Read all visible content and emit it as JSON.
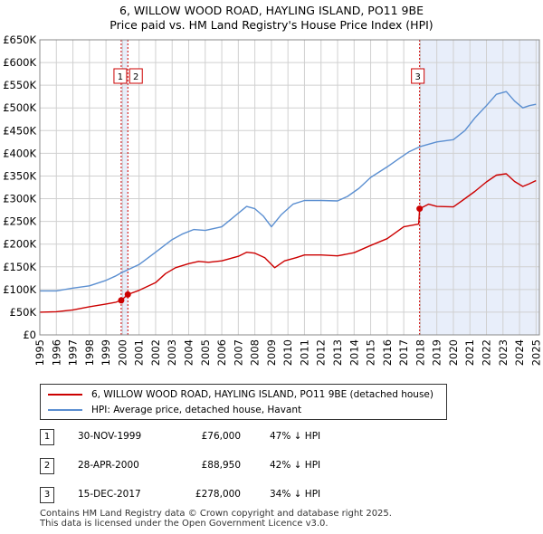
{
  "title": {
    "line1": "6, WILLOW WOOD ROAD, HAYLING ISLAND, PO11 9BE",
    "line2": "Price paid vs. HM Land Registry's House Price Index (HPI)"
  },
  "chart_data": {
    "type": "line",
    "title": "6, WILLOW WOOD ROAD, HAYLING ISLAND, PO11 9BE",
    "subtitle": "Price paid vs. HM Land Registry's House Price Index (HPI)",
    "xlim": [
      1995,
      2025.2
    ],
    "ylim": [
      0,
      650000
    ],
    "x_ticks": [
      "1995",
      "1996",
      "1997",
      "1998",
      "1999",
      "2000",
      "2001",
      "2002",
      "2003",
      "2004",
      "2005",
      "2006",
      "2007",
      "2008",
      "2009",
      "2010",
      "2011",
      "2012",
      "2013",
      "2014",
      "2015",
      "2016",
      "2017",
      "2018",
      "2019",
      "2020",
      "2021",
      "2022",
      "2023",
      "2024",
      "2025"
    ],
    "y_ticks": [
      {
        "value": 0,
        "label": "£0"
      },
      {
        "value": 50000,
        "label": "£50K"
      },
      {
        "value": 100000,
        "label": "£100K"
      },
      {
        "value": 150000,
        "label": "£150K"
      },
      {
        "value": 200000,
        "label": "£200K"
      },
      {
        "value": 250000,
        "label": "£250K"
      },
      {
        "value": 300000,
        "label": "£300K"
      },
      {
        "value": 350000,
        "label": "£350K"
      },
      {
        "value": 400000,
        "label": "£400K"
      },
      {
        "value": 450000,
        "label": "£450K"
      },
      {
        "value": 500000,
        "label": "£500K"
      },
      {
        "value": 550000,
        "label": "£550K"
      },
      {
        "value": 600000,
        "label": "£600K"
      },
      {
        "value": 650000,
        "label": "£650K"
      }
    ],
    "series": [
      {
        "name": "6, WILLOW WOOD ROAD, HAYLING ISLAND, PO11 9BE (detached house)",
        "color": "#cc0000",
        "points": [
          [
            1995.0,
            50000
          ],
          [
            1996.0,
            51000
          ],
          [
            1997.0,
            55000
          ],
          [
            1998.0,
            62000
          ],
          [
            1999.0,
            68000
          ],
          [
            1999.6,
            72000
          ],
          [
            1999.92,
            76000
          ],
          [
            2000.32,
            88950
          ],
          [
            2001.0,
            98000
          ],
          [
            2002.0,
            115000
          ],
          [
            2002.6,
            135000
          ],
          [
            2003.2,
            148000
          ],
          [
            2004.0,
            157000
          ],
          [
            2004.6,
            162000
          ],
          [
            2005.2,
            160000
          ],
          [
            2006.0,
            163000
          ],
          [
            2007.0,
            173000
          ],
          [
            2007.5,
            182000
          ],
          [
            2008.0,
            180000
          ],
          [
            2008.6,
            170000
          ],
          [
            2009.2,
            148000
          ],
          [
            2009.8,
            163000
          ],
          [
            2010.5,
            170000
          ],
          [
            2011.0,
            176000
          ],
          [
            2012.0,
            176000
          ],
          [
            2013.0,
            174000
          ],
          [
            2014.0,
            181000
          ],
          [
            2015.0,
            197000
          ],
          [
            2016.0,
            212000
          ],
          [
            2017.0,
            238000
          ],
          [
            2017.9,
            244000
          ],
          [
            2017.96,
            278000
          ],
          [
            2018.5,
            288000
          ],
          [
            2019.0,
            283000
          ],
          [
            2020.0,
            282000
          ],
          [
            2020.7,
            300000
          ],
          [
            2021.3,
            316000
          ],
          [
            2022.0,
            337000
          ],
          [
            2022.6,
            352000
          ],
          [
            2023.2,
            355000
          ],
          [
            2023.7,
            338000
          ],
          [
            2024.2,
            327000
          ],
          [
            2024.6,
            333000
          ],
          [
            2025.0,
            340000
          ]
        ]
      },
      {
        "name": "HPI: Average price, detached house, Havant",
        "color": "#5b8fd1",
        "points": [
          [
            1995.0,
            97000
          ],
          [
            1996.0,
            97000
          ],
          [
            1997.0,
            103000
          ],
          [
            1998.0,
            108000
          ],
          [
            1999.0,
            120000
          ],
          [
            1999.6,
            130000
          ],
          [
            2000.0,
            138000
          ],
          [
            2001.0,
            155000
          ],
          [
            2002.0,
            182000
          ],
          [
            2003.0,
            210000
          ],
          [
            2003.6,
            222000
          ],
          [
            2004.3,
            232000
          ],
          [
            2005.0,
            230000
          ],
          [
            2006.0,
            238000
          ],
          [
            2006.8,
            262000
          ],
          [
            2007.5,
            283000
          ],
          [
            2008.0,
            278000
          ],
          [
            2008.5,
            262000
          ],
          [
            2009.0,
            238000
          ],
          [
            2009.6,
            265000
          ],
          [
            2010.3,
            288000
          ],
          [
            2011.0,
            296000
          ],
          [
            2012.0,
            296000
          ],
          [
            2013.0,
            295000
          ],
          [
            2013.6,
            305000
          ],
          [
            2014.3,
            323000
          ],
          [
            2015.0,
            347000
          ],
          [
            2016.0,
            370000
          ],
          [
            2016.7,
            388000
          ],
          [
            2017.3,
            403000
          ],
          [
            2018.0,
            415000
          ],
          [
            2019.0,
            425000
          ],
          [
            2020.0,
            430000
          ],
          [
            2020.7,
            450000
          ],
          [
            2021.3,
            478000
          ],
          [
            2022.0,
            505000
          ],
          [
            2022.6,
            530000
          ],
          [
            2023.2,
            536000
          ],
          [
            2023.7,
            515000
          ],
          [
            2024.2,
            500000
          ],
          [
            2024.6,
            505000
          ],
          [
            2025.0,
            508000
          ]
        ]
      }
    ],
    "sales": [
      {
        "id": "1",
        "x": 1999.92,
        "price": 76000
      },
      {
        "id": "2",
        "x": 2000.32,
        "price": 88950
      },
      {
        "id": "3",
        "x": 2017.96,
        "price": 278000
      }
    ],
    "shaded_regions": [
      [
        1999.92,
        2000.32
      ],
      [
        2017.96,
        2025.2
      ]
    ],
    "grid": true
  },
  "legend": {
    "items": [
      {
        "label": "6, WILLOW WOOD ROAD, HAYLING ISLAND, PO11 9BE (detached house)",
        "color": "#cc0000"
      },
      {
        "label": "HPI: Average price, detached house, Havant",
        "color": "#5b8fd1"
      }
    ]
  },
  "transactions": [
    {
      "id": "1",
      "date": "30-NOV-1999",
      "price": "£76,000",
      "hpi": "47% ↓ HPI"
    },
    {
      "id": "2",
      "date": "28-APR-2000",
      "price": "£88,950",
      "hpi": "42% ↓ HPI"
    },
    {
      "id": "3",
      "date": "15-DEC-2017",
      "price": "£278,000",
      "hpi": "34% ↓ HPI"
    }
  ],
  "footer": {
    "line1": "Contains HM Land Registry data © Crown copyright and database right 2025.",
    "line2": "This data is licensed under the Open Government Licence v3.0."
  }
}
